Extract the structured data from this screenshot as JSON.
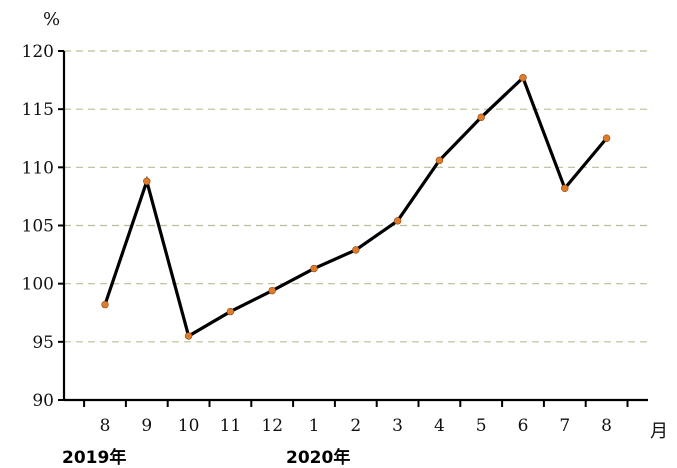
{
  "chart_data": {
    "type": "line",
    "title": "",
    "ylabel": "%",
    "xlabel": "月",
    "categories": [
      "8",
      "9",
      "10",
      "11",
      "12",
      "1",
      "2",
      "3",
      "4",
      "5",
      "6",
      "7",
      "8"
    ],
    "year_labels": [
      "2019年",
      "2020年"
    ],
    "ylim": [
      90,
      120
    ],
    "yticks": [
      90,
      95,
      100,
      105,
      110,
      115,
      120
    ],
    "grid": true,
    "series": [
      {
        "values": [
          98.2,
          108.8,
          95.5,
          97.6,
          99.4,
          101.3,
          102.9,
          105.4,
          110.6,
          114.3,
          117.7,
          108.2,
          112.5
        ]
      }
    ],
    "colors": {
      "line": "#000000",
      "marker": "#e07b2a",
      "grid": "#bdbd9a"
    }
  }
}
